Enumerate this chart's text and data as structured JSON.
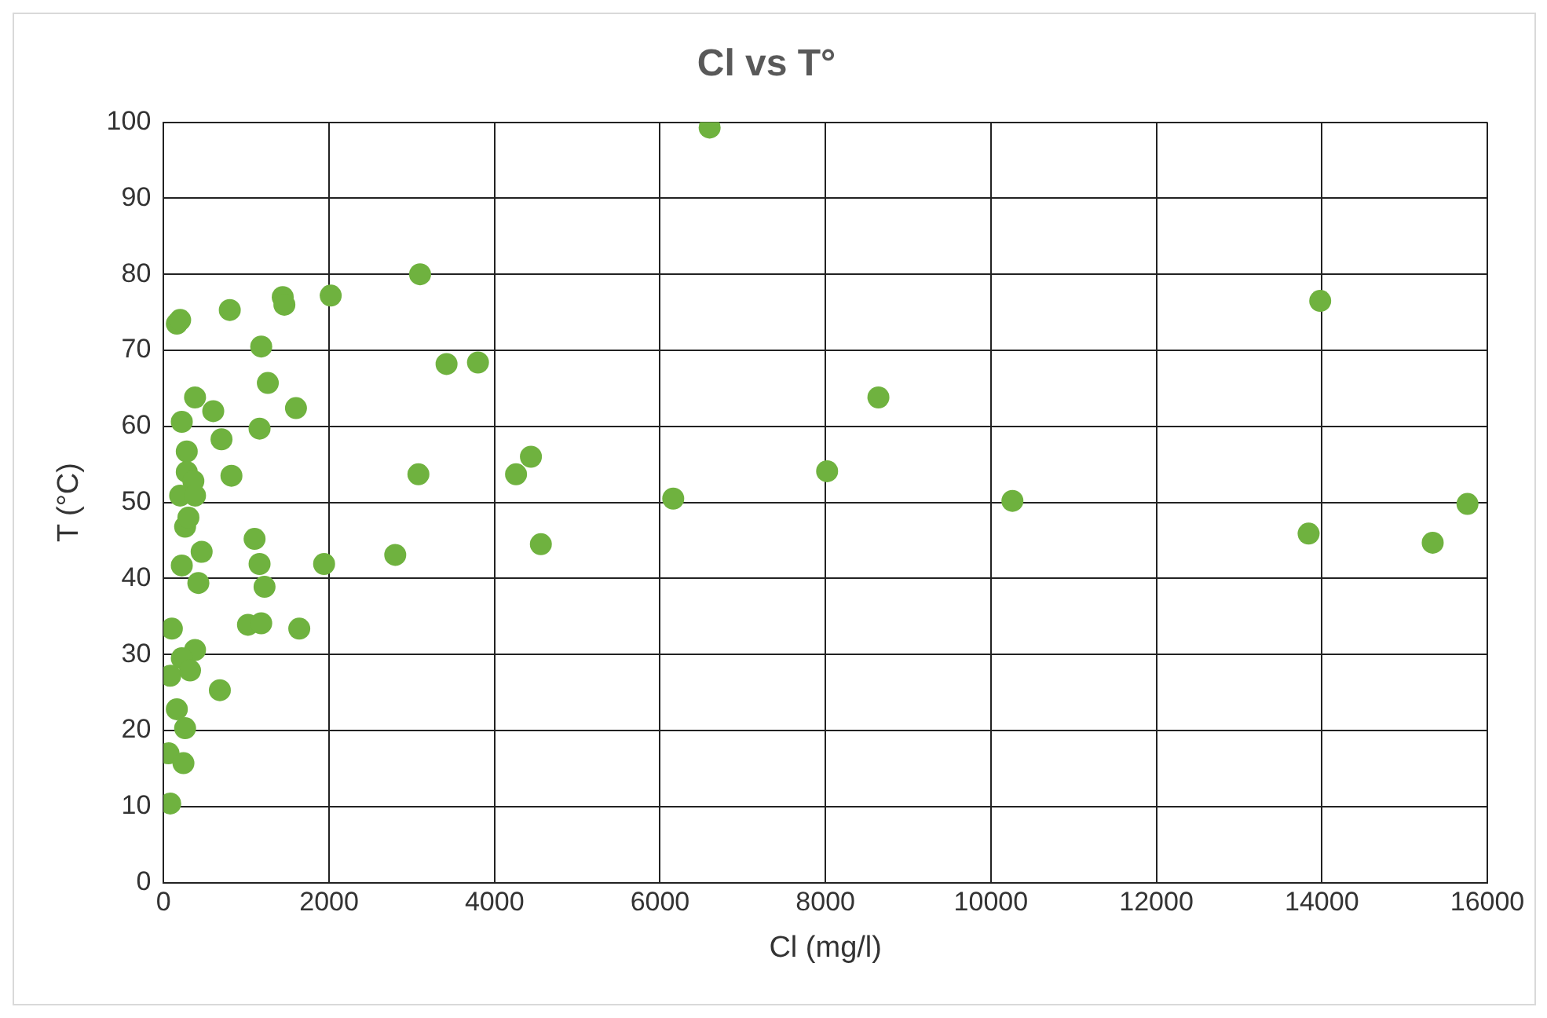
{
  "chart_data": {
    "type": "scatter",
    "title": "Cl vs T°",
    "xlabel": "Cl (mg/l)",
    "ylabel": "T (°C)",
    "xlim": [
      0,
      16000
    ],
    "xticks": [
      0,
      2000,
      4000,
      6000,
      8000,
      10000,
      12000,
      14000,
      16000
    ],
    "ylim": [
      0,
      100
    ],
    "yticks": [
      0,
      10,
      20,
      30,
      40,
      50,
      60,
      70,
      80,
      90,
      100
    ],
    "grid": true,
    "legend": false,
    "marker": "circle",
    "series": [
      {
        "color": "#6fb23f",
        "x": [
          160,
          200,
          800,
          1440,
          1460,
          2020,
          3100,
          6600,
          13980,
          1180,
          1260,
          1600,
          380,
          600,
          220,
          1160,
          700,
          280,
          280,
          360,
          820,
          200,
          380,
          260,
          300,
          1100,
          460,
          220,
          1160,
          1220,
          420,
          1940,
          2800,
          3420,
          3800,
          8640,
          3080,
          4260,
          4440,
          8020,
          6160,
          4560,
          10260,
          13840,
          15340,
          15760,
          100,
          1020,
          1180,
          1640,
          380,
          220,
          80,
          320,
          680,
          160,
          260,
          60,
          240,
          80
        ],
        "values": [
          73.5,
          74,
          75.3,
          77,
          76,
          77.2,
          80,
          99.3,
          76.5,
          70.5,
          65.7,
          62.4,
          63.8,
          62,
          60.6,
          59.7,
          58.3,
          56.7,
          54,
          52.8,
          53.5,
          50.9,
          50.9,
          46.8,
          48,
          45.2,
          43.5,
          41.7,
          41.9,
          38.9,
          39.4,
          41.9,
          43.1,
          68.2,
          68.4,
          63.8,
          53.7,
          53.7,
          56,
          54.1,
          50.5,
          44.5,
          50.2,
          45.9,
          44.7,
          49.8,
          33.4,
          33.9,
          34.1,
          33.4,
          30.6,
          29.5,
          27.2,
          27.9,
          25.3,
          22.8,
          20.3,
          17,
          15.7,
          10.4
        ]
      }
    ]
  }
}
